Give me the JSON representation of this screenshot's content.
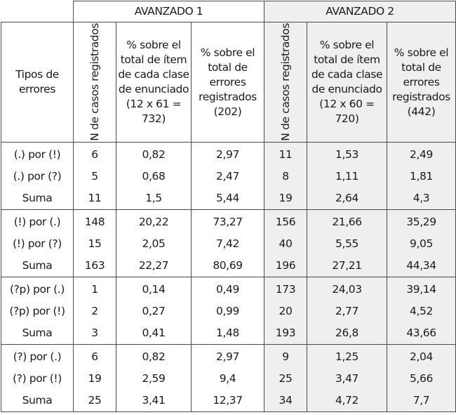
{
  "table": {
    "groups": [
      {
        "label": "AVANZADO 1"
      },
      {
        "label": "AVANZADO 2"
      }
    ],
    "row_header_label": "Tipos de errores",
    "columns": {
      "avanzado1": {
        "n_casos": "N de casos registrados",
        "pct_item": "% sobre el total de ítem de cada clase de enunciado (12 x 61 = 732)",
        "pct_errores": "% sobre el total de errores registrados (202)"
      },
      "avanzado2": {
        "n_casos": "N de casos registrados",
        "pct_item": "% sobre el total de ítem de cada clase de enunciado (12 x 60 = 720)",
        "pct_errores": "% sobre el total de errores registrados (442)"
      }
    },
    "sections": [
      {
        "rows": [
          {
            "tipo": "(.) por (!)",
            "a1_n": "6",
            "a1_item": "0,82",
            "a1_err": "2,97",
            "a2_n": "11",
            "a2_item": "1,53",
            "a2_err": "2,49"
          },
          {
            "tipo": "(.) por (?)",
            "a1_n": "5",
            "a1_item": "0,68",
            "a1_err": "2,47",
            "a2_n": "8",
            "a2_item": "1,11",
            "a2_err": "1,81"
          },
          {
            "tipo": "Suma",
            "a1_n": "11",
            "a1_item": "1,5",
            "a1_err": "5,44",
            "a2_n": "19",
            "a2_item": "2,64",
            "a2_err": "4,3"
          }
        ]
      },
      {
        "rows": [
          {
            "tipo": "(!) por (.)",
            "a1_n": "148",
            "a1_item": "20,22",
            "a1_err": "73,27",
            "a2_n": "156",
            "a2_item": "21,66",
            "a2_err": "35,29"
          },
          {
            "tipo": "(!) por (?)",
            "a1_n": "15",
            "a1_item": "2,05",
            "a1_err": "7,42",
            "a2_n": "40",
            "a2_item": "5,55",
            "a2_err": "9,05"
          },
          {
            "tipo": "Suma",
            "a1_n": "163",
            "a1_item": "22,27",
            "a1_err": "80,69",
            "a2_n": "196",
            "a2_item": "27,21",
            "a2_err": "44,34"
          }
        ]
      },
      {
        "rows": [
          {
            "tipo": "(?p) por (.)",
            "a1_n": "1",
            "a1_item": "0,14",
            "a1_err": "0,49",
            "a2_n": "173",
            "a2_item": "24,03",
            "a2_err": "39,14"
          },
          {
            "tipo": "(?p) por (!)",
            "a1_n": "2",
            "a1_item": "0,27",
            "a1_err": "0,99",
            "a2_n": "20",
            "a2_item": "2,77",
            "a2_err": "4,52"
          },
          {
            "tipo": "Suma",
            "a1_n": "3",
            "a1_item": "0,41",
            "a1_err": "1,48",
            "a2_n": "193",
            "a2_item": "26,8",
            "a2_err": "43,66"
          }
        ]
      },
      {
        "rows": [
          {
            "tipo": "(?) por (.)",
            "a1_n": "6",
            "a1_item": "0,82",
            "a1_err": "2,97",
            "a2_n": "9",
            "a2_item": "1,25",
            "a2_err": "2,04"
          },
          {
            "tipo": "(?) por (!)",
            "a1_n": "19",
            "a1_item": "2,59",
            "a1_err": "9,4",
            "a2_n": "25",
            "a2_item": "3,47",
            "a2_err": "5,66"
          },
          {
            "tipo": "Suma",
            "a1_n": "25",
            "a1_item": "3,41",
            "a1_err": "12,37",
            "a2_n": "34",
            "a2_item": "4,72",
            "a2_err": "7,7"
          }
        ]
      }
    ],
    "colors": {
      "shade": "#efefef",
      "border": "#4a4a4a",
      "text": "#1a1a1a"
    }
  }
}
